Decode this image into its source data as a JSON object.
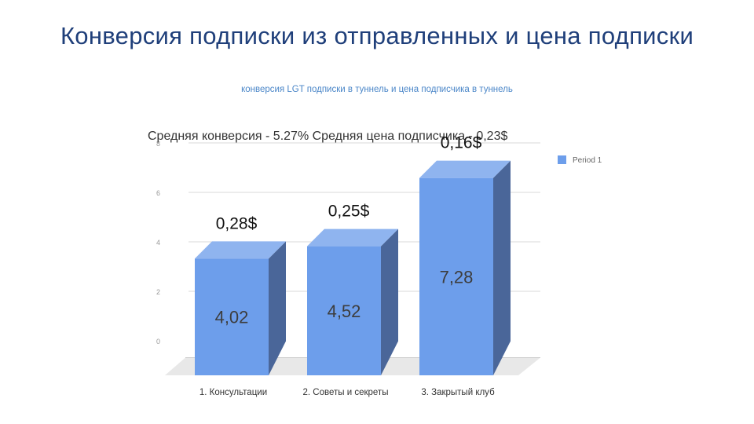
{
  "slide": {
    "title": "Конверсия подписки из отправленных и цена подписки",
    "subtitle": "конверсия LGT подписки в туннель и цена подписчика в туннель"
  },
  "chart_data": {
    "type": "bar",
    "title": "Средняя конверсия - 5.27% Средняя цена подписчика - 0,23$",
    "categories": [
      "1. Консультации",
      "2. Советы и секреты",
      "3. Закрытый клуб"
    ],
    "series": [
      {
        "name": "Period 1",
        "values": [
          4.02,
          4.52,
          7.28
        ]
      }
    ],
    "value_labels": [
      "4,02",
      "4,52",
      "7,28"
    ],
    "price_labels": [
      "0,28$",
      "0,25$",
      "0,16$"
    ],
    "ylim": [
      0,
      8
    ],
    "yticks": [
      0,
      2,
      4,
      6,
      8
    ],
    "grid": true,
    "legend_position": "top-right",
    "style": "3d",
    "colors": {
      "bar_front": "#6d9eeb",
      "bar_top": "#8fb4ef",
      "bar_side": "#4a6699",
      "floor": "#e8e8e8",
      "grid": "#d9d9d9",
      "title_text": "#1f3f7a",
      "subtitle_text": "#4a86c8"
    }
  }
}
